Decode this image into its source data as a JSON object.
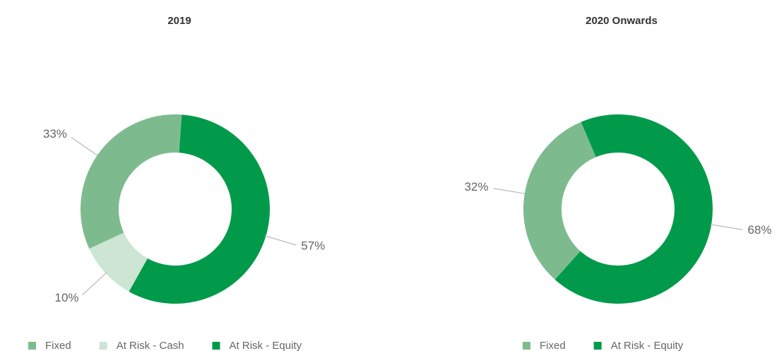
{
  "chart_data": [
    {
      "type": "donut",
      "title": "2019",
      "categories": [
        "Fixed",
        "At Risk - Cash",
        "At Risk - Equity"
      ],
      "values": [
        33,
        10,
        57
      ],
      "value_labels": [
        "33%",
        "10%",
        "57%"
      ],
      "colors": [
        "#7dbb8f",
        "#cde5d3",
        "#009a4a"
      ]
    },
    {
      "type": "donut",
      "title": "2020 Onwards",
      "categories": [
        "Fixed",
        "At Risk - Equity"
      ],
      "values": [
        32,
        68
      ],
      "value_labels": [
        "32%",
        "68%"
      ],
      "colors": [
        "#7dbb8f",
        "#009a4a"
      ]
    }
  ]
}
